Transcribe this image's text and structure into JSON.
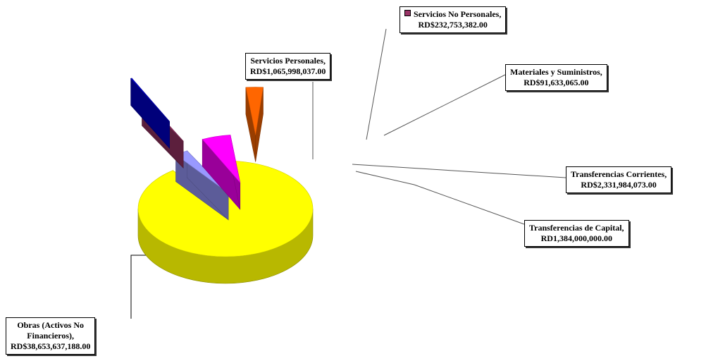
{
  "chart_data": {
    "type": "pie",
    "title": "",
    "legend": "none",
    "slices": [
      {
        "name": "Obras (Activos No Financieros),",
        "label_lines": [
          "Obras (Activos No",
          "Financieros),"
        ],
        "value": 38653637188.0,
        "display": "RD$38,653,637,188.00",
        "color": "#ffff00"
      },
      {
        "name": "Servicios Personales,",
        "label_lines": [
          "Servicios Personales,"
        ],
        "value": 1065998037.0,
        "display": "RD$1,065,998,037.00",
        "color": "#9999ff"
      },
      {
        "name": "Servicios No Personales,",
        "label_lines": [
          "Servicios No Personales,"
        ],
        "value": 232753382.0,
        "display": "RD$232,753,382.00",
        "color": "#993366"
      },
      {
        "name": "Materiales y Suministros,",
        "label_lines": [
          "Materiales y Suministros,"
        ],
        "value": 91633065.0,
        "display": "RD$91,633,065.00",
        "color": "#0000cc"
      },
      {
        "name": "Transferencias Corrientes,",
        "label_lines": [
          "Transferencias Corrientes,"
        ],
        "value": 2331984073.0,
        "display": "RD$2,331,984,073.00",
        "color": "#ff00ff"
      },
      {
        "name": "Transferencias de Capital,",
        "label_lines": [
          "Transferencias de Capital,"
        ],
        "value": 1384000000.0,
        "display": "RD1,384,000,000.00",
        "color": "#ff6600"
      }
    ]
  }
}
